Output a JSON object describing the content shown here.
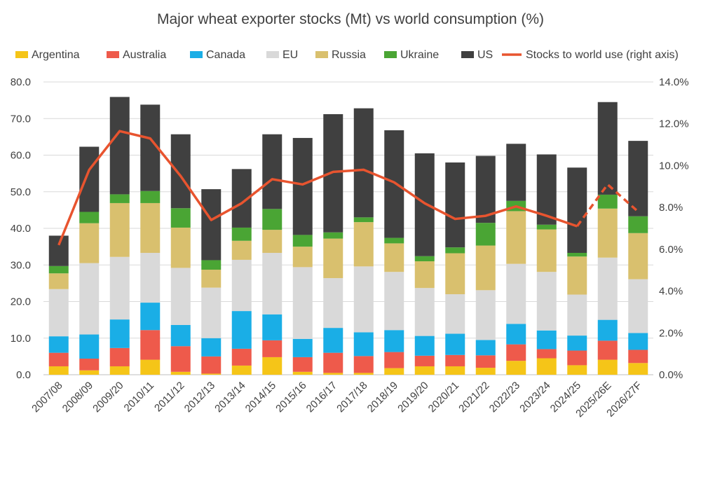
{
  "chart_data": {
    "type": "bar",
    "stacked": true,
    "title": "Major wheat exporter stocks (Mt) vs world consumption (%)",
    "categories": [
      "2007/08",
      "2008/09",
      "2009/20",
      "2010/11",
      "2011/12",
      "2012/13",
      "2013/14",
      "2014/15",
      "2015/16",
      "2016/17",
      "2017/18",
      "2018/19",
      "2019/20",
      "2020/21",
      "2021/22",
      "2022/23",
      "2023/24",
      "2024/25",
      "2025/26E",
      "2026/27F"
    ],
    "ylim": [
      0,
      80
    ],
    "yticks": [
      "0.0",
      "10.0",
      "20.0",
      "30.0",
      "40.0",
      "50.0",
      "60.0",
      "70.0",
      "80.0"
    ],
    "y2lim": [
      0,
      14
    ],
    "y2ticks": [
      "0.0%",
      "2.0%",
      "4.0%",
      "6.0%",
      "8.0%",
      "10.0%",
      "12.0%",
      "14.0%"
    ],
    "grid": true,
    "legend_position": "top",
    "series": [
      {
        "name": "Argentina",
        "color": "#f5c518",
        "values": [
          2.3,
          1.2,
          2.3,
          4.1,
          0.8,
          0.3,
          2.5,
          4.8,
          0.8,
          0.5,
          0.5,
          1.8,
          2.3,
          2.3,
          1.9,
          3.8,
          4.5,
          2.6,
          4.1,
          3.2
        ]
      },
      {
        "name": "Australia",
        "color": "#ee5a4b",
        "values": [
          3.7,
          3.2,
          5.0,
          8.1,
          7.0,
          4.7,
          4.6,
          4.6,
          4.0,
          5.5,
          4.6,
          4.4,
          2.9,
          3.1,
          3.4,
          4.5,
          2.5,
          4.0,
          5.2,
          3.6
        ]
      },
      {
        "name": "Canada",
        "color": "#1aaee6",
        "values": [
          4.5,
          6.6,
          7.8,
          7.5,
          5.8,
          5.0,
          10.3,
          7.1,
          5.0,
          6.8,
          6.5,
          6.0,
          5.4,
          5.8,
          4.2,
          5.6,
          5.1,
          4.1,
          5.7,
          4.6
        ]
      },
      {
        "name": "EU",
        "color": "#d9d9d9",
        "values": [
          12.9,
          19.5,
          17.1,
          13.6,
          15.6,
          13.8,
          14.0,
          16.8,
          19.6,
          13.6,
          18.0,
          15.9,
          13.1,
          10.8,
          13.6,
          16.4,
          16.0,
          11.2,
          17.0,
          14.7
        ]
      },
      {
        "name": "Russia",
        "color": "#d9c06e",
        "values": [
          4.3,
          10.9,
          14.7,
          13.6,
          11.0,
          4.9,
          5.2,
          6.3,
          5.6,
          10.8,
          12.1,
          7.8,
          7.3,
          11.2,
          12.2,
          14.4,
          11.6,
          10.4,
          13.4,
          12.6
        ]
      },
      {
        "name": "Ukraine",
        "color": "#4aa534",
        "values": [
          2.0,
          3.1,
          2.4,
          3.3,
          5.3,
          2.6,
          3.6,
          5.7,
          3.2,
          1.7,
          1.3,
          1.5,
          1.4,
          1.6,
          6.2,
          2.8,
          1.3,
          1.0,
          3.8,
          4.6
        ]
      },
      {
        "name": "US",
        "color": "#404040",
        "values": [
          8.3,
          17.8,
          26.6,
          23.6,
          20.2,
          19.4,
          16.0,
          20.4,
          26.5,
          32.3,
          29.8,
          29.4,
          28.1,
          23.2,
          18.3,
          15.6,
          19.2,
          23.3,
          25.3,
          20.6
        ]
      }
    ],
    "line": {
      "name": "Stocks to world use (right axis)",
      "color": "#e8542f",
      "axis": "right",
      "values": [
        6.2,
        9.8,
        11.65,
        11.3,
        9.5,
        7.4,
        8.2,
        9.35,
        9.1,
        9.7,
        9.8,
        9.2,
        8.2,
        7.45,
        7.6,
        8.05,
        7.6,
        7.1,
        9.1,
        7.8
      ],
      "dashed_from_index": 17
    }
  }
}
